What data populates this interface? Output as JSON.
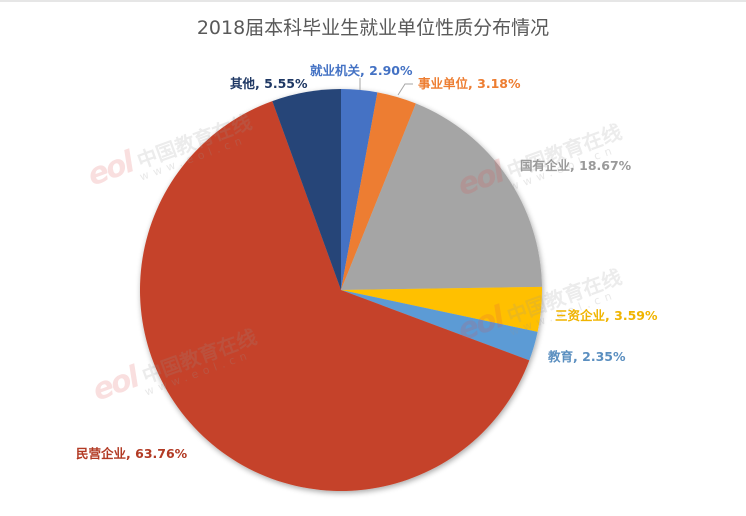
{
  "chart_data": {
    "type": "pie",
    "title": "2018届本科毕业生就业单位性质分布情况",
    "start_angle_deg": 0,
    "direction": "clockwise",
    "legend": "none",
    "data_labels": "category, percent (outside)",
    "slices": [
      {
        "name": "就业机关",
        "value": 2.9,
        "label": "就业机关, 2.90%",
        "color": "#4472C4",
        "label_color": "#4472C4"
      },
      {
        "name": "事业单位",
        "value": 3.18,
        "label": "事业单位, 3.18%",
        "color": "#ED7D31",
        "label_color": "#ED7D31"
      },
      {
        "name": "国有企业",
        "value": 18.67,
        "label": "国有企业, 18.67%",
        "color": "#A5A5A5",
        "label_color": "#9A9A9A"
      },
      {
        "name": "三资企业",
        "value": 3.59,
        "label": "三资企业, 3.59%",
        "color": "#FFC000",
        "label_color": "#F0B400"
      },
      {
        "name": "教育",
        "value": 2.35,
        "label": "教育, 2.35%",
        "color": "#5B9BD5",
        "label_color": "#5B8FC0"
      },
      {
        "name": "民营企业",
        "value": 63.76,
        "label": "民营企业, 63.76%",
        "color": "#C5432A",
        "label_color": "#B23A24"
      },
      {
        "name": "其他",
        "value": 5.55,
        "label": "其他, 5.55%",
        "color": "#264478",
        "label_color": "#1F3864"
      }
    ]
  },
  "labels": {
    "s0": {
      "name": "就业机关",
      "pct": "2.90%"
    },
    "s1": {
      "name": "事业单位",
      "pct": "3.18%"
    },
    "s2": {
      "name": "国有企业",
      "pct": "18.67%"
    },
    "s3": {
      "name": "三资企业",
      "pct": "3.59%"
    },
    "s4": {
      "name": "教育",
      "pct": "2.35%"
    },
    "s5": {
      "name": "民营企业",
      "pct": "63.76%"
    },
    "s6": {
      "name": "其他",
      "pct": "5.55%"
    }
  },
  "watermark": {
    "logo": "eol",
    "cn": "中国教育在线",
    "url": "www.eol.cn"
  }
}
